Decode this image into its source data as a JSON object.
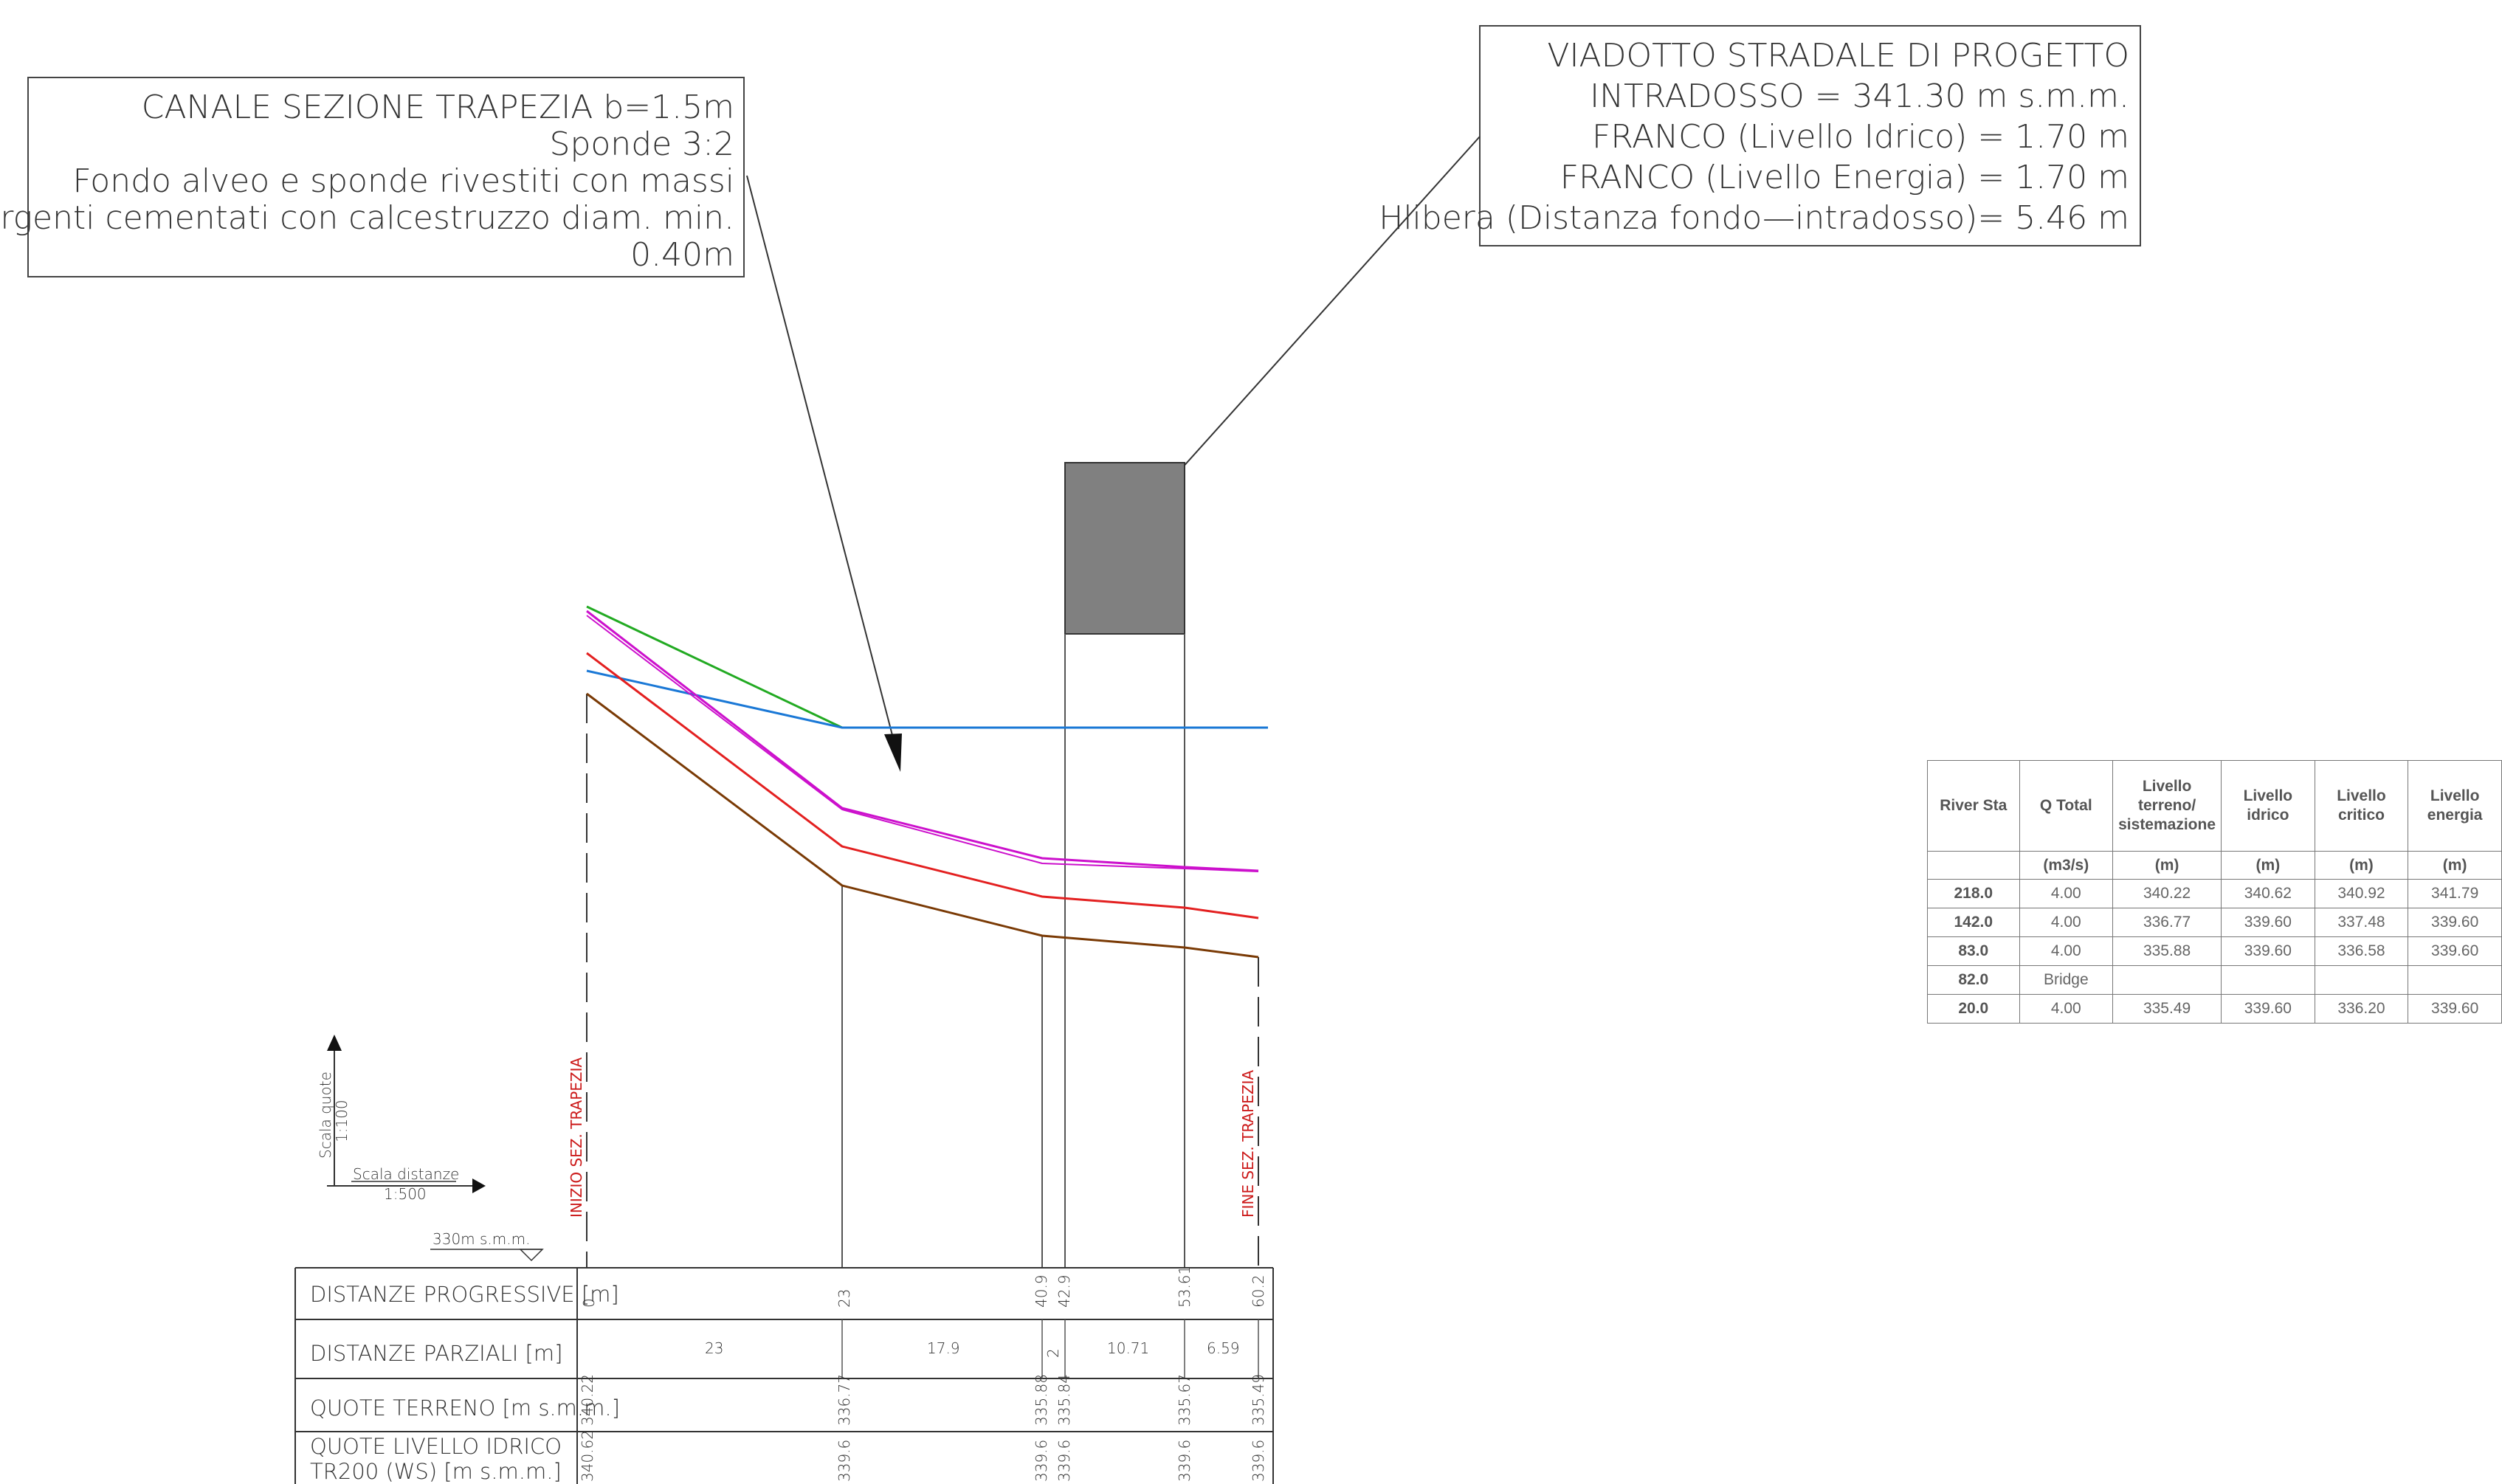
{
  "notes": {
    "canal": [
      "CANALE SEZIONE TRAPEZIA b=1.5m",
      "Sponde 3:2",
      "Fondo alveo e sponde rivestiti con massi",
      "emergenti cementati con calcestruzzo diam. min.",
      "0.40m"
    ],
    "bridge": [
      "VIADOTTO STRADALE DI PROGETTO",
      "INTRADOSSO = 341.30 m s.m.m.",
      "FRANCO (Livello Idrico) = 1.70 m",
      "FRANCO (Livello Energia) = 1.70 m",
      "Hlibera (Distanza fondo—intradosso)= 5.46 m"
    ]
  },
  "scale": {
    "vertical_label": "Scala quote",
    "vertical_ratio": "1:100",
    "horizontal_label": "Scala distanze",
    "horizontal_ratio": "1:500",
    "datum": "330m s.m.m."
  },
  "markers": {
    "start": "INIZIO SEZ. TRAPEZIA",
    "end": "FINE SEZ. TRAPEZIA"
  },
  "profile_rows": {
    "labels": [
      "DISTANZE PROGRESSIVE [m]",
      "DISTANZE PARZIALI [m]",
      "QUOTE TERRENO [m s.m.m.]",
      "QUOTE LIVELLO IDRICO",
      "TR200 (WS) [m s.m.m.]"
    ],
    "progressive": [
      "0",
      "23",
      "40.9",
      "42.9",
      "53.61",
      "60.2"
    ],
    "partial": [
      "23",
      "17.9",
      "2",
      "10.71",
      "6.59"
    ],
    "ground": [
      "340.22",
      "336.77",
      "335.88",
      "335.84",
      "335.67",
      "335.49"
    ],
    "water": [
      "340.62",
      "339.6",
      "339.6",
      "339.6",
      "339.6",
      "339.6"
    ]
  },
  "colors": {
    "ground": "#7a3a05",
    "red_line": "#e32020",
    "magenta_line": "#cc10cc",
    "green_line": "#22aa22",
    "blue_line": "#1a78d6",
    "bridge_fill": "#808080"
  },
  "table": {
    "headers": [
      "River Sta",
      "Q Total",
      "Livello terreno/ sistemazione",
      "Livello idrico",
      "Livello critico",
      "Livello energia"
    ],
    "units": [
      "",
      "(m3/s)",
      "(m)",
      "(m)",
      "(m)",
      "(m)"
    ],
    "rows": [
      [
        "218.0",
        "4.00",
        "340.22",
        "340.62",
        "340.92",
        "341.79"
      ],
      [
        "142.0",
        "4.00",
        "336.77",
        "339.60",
        "337.48",
        "339.60"
      ],
      [
        "83.0",
        "4.00",
        "335.88",
        "339.60",
        "336.58",
        "339.60"
      ],
      [
        "82.0",
        "Bridge",
        "",
        "",
        "",
        ""
      ],
      [
        "20.0",
        "4.00",
        "335.49",
        "339.60",
        "336.20",
        "339.60"
      ]
    ]
  }
}
